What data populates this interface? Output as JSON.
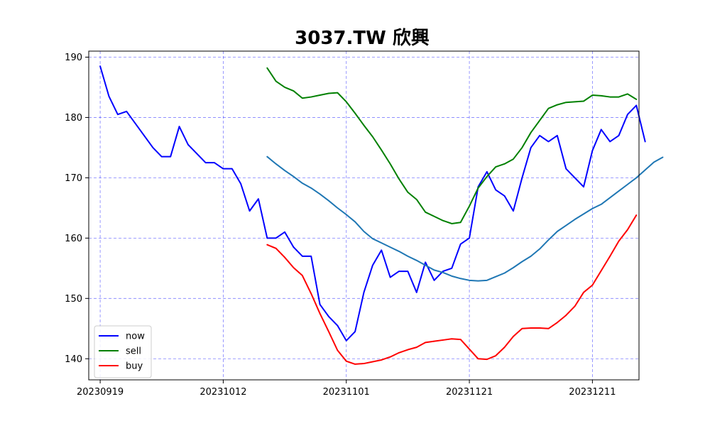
{
  "chart_data": {
    "type": "line",
    "title": "3037.TW 欣興",
    "xlabel": "",
    "ylabel": "",
    "ylim": [
      136.5,
      191
    ],
    "yticks": [
      140,
      150,
      160,
      170,
      180,
      190
    ],
    "xlim": [
      -1.3,
      61.3
    ],
    "xticks": [
      {
        "index": 0,
        "label": "20230919"
      },
      {
        "index": 14,
        "label": "20231012"
      },
      {
        "index": 28,
        "label": "20231101"
      },
      {
        "index": 42,
        "label": "20231121"
      },
      {
        "index": 56,
        "label": "20231211"
      }
    ],
    "grid": true,
    "legend_position": "lower-left",
    "series": [
      {
        "name": "now",
        "color": "#0000ff",
        "start_index": 0,
        "values": [
          188.5,
          183.5,
          180.5,
          181,
          179,
          177,
          175,
          173.5,
          173.5,
          178.5,
          175.5,
          174,
          172.5,
          172.5,
          171.5,
          171.5,
          169,
          164.5,
          166.5,
          160,
          160,
          161,
          158.5,
          157,
          157,
          149,
          147,
          145.5,
          143,
          144.5,
          151,
          155.5,
          158,
          153.5,
          154.5,
          154.5,
          151,
          156,
          153,
          154.5,
          155,
          159,
          160,
          168.5,
          171,
          168,
          167,
          164.5,
          170,
          175,
          177,
          176,
          177,
          171.5,
          170,
          168.5,
          174.5,
          178,
          176,
          177,
          180.5,
          182,
          176
        ]
      },
      {
        "name": "sell",
        "color": "#008000",
        "start_index": 19,
        "values": [
          188.2,
          186,
          185,
          184.4,
          183.2,
          183.4,
          183.7,
          184,
          184.1,
          182.6,
          180.7,
          178.7,
          176.8,
          174.6,
          172.3,
          169.8,
          167.6,
          166.4,
          164.3,
          163.6,
          162.9,
          162.4,
          162.6,
          165.3,
          168.3,
          170.2,
          171.8,
          172.3,
          173.1,
          175,
          177.5,
          179.5,
          181.5,
          182.1,
          182.5,
          182.6,
          182.7,
          183.7,
          183.6,
          183.4,
          183.4,
          183.9,
          183
        ]
      },
      {
        "color": "#1f77b4",
        "start_index": 19,
        "values": [
          173.5,
          172.3,
          171.2,
          170.2,
          169.1,
          168.3,
          167.3,
          166.2,
          165,
          163.9,
          162.7,
          161.1,
          159.9,
          159.2,
          158.5,
          157.8,
          157,
          156.3,
          155.5,
          154.7,
          154.3,
          153.7,
          153.3,
          153,
          152.9,
          153,
          153.6,
          154.2,
          155.1,
          156.1,
          157,
          158.2,
          159.7,
          161.1,
          162.1,
          163.1,
          164,
          164.9,
          165.6,
          166.7,
          167.8,
          168.9,
          170,
          171.3,
          172.6,
          173.4
        ]
      },
      {
        "name": "buy",
        "color": "#ff0000",
        "start_index": 19,
        "values": [
          158.9,
          158.3,
          156.8,
          155.1,
          153.8,
          150.8,
          147.5,
          144.5,
          141.4,
          139.6,
          139.1,
          139.2,
          139.5,
          139.8,
          140.3,
          141,
          141.5,
          141.9,
          142.7,
          142.9,
          143.1,
          143.3,
          143.2,
          141.6,
          140,
          139.9,
          140.5,
          141.9,
          143.7,
          145,
          145.1,
          145.1,
          145,
          146,
          147.2,
          148.7,
          151,
          152.2,
          154.6,
          157,
          159.5,
          161.4,
          163.8
        ]
      }
    ]
  }
}
